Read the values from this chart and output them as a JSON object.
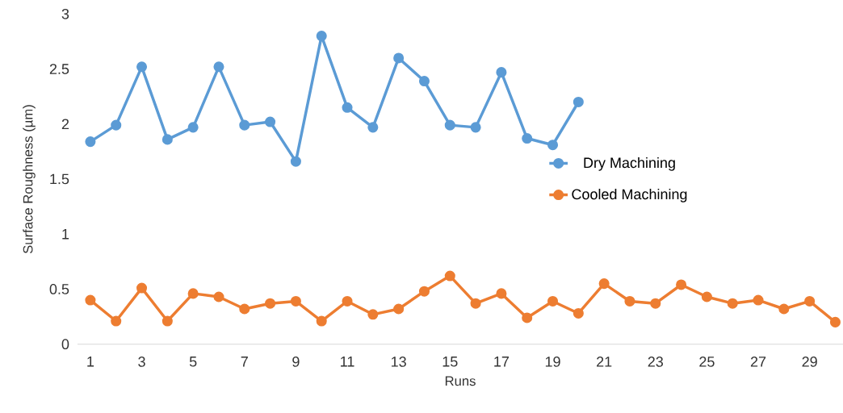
{
  "chart_data": {
    "type": "line",
    "xlabel": "Runs",
    "ylabel": "Surface Roughness (µm)",
    "categories": [
      "1",
      null,
      "3",
      null,
      "5",
      null,
      "7",
      null,
      "9",
      null,
      "11",
      null,
      "13",
      null,
      "15",
      null,
      "17",
      null,
      "19",
      null,
      "21",
      null,
      "23",
      null,
      "25",
      null,
      "27",
      null,
      "29",
      null
    ],
    "series": [
      {
        "name": "Dry Machining",
        "color": "#5b9bd5",
        "values": [
          1.84,
          1.99,
          2.52,
          1.86,
          1.97,
          2.52,
          1.99,
          2.02,
          1.66,
          2.8,
          2.15,
          1.97,
          2.6,
          2.39,
          1.99,
          1.97,
          2.47,
          1.87,
          1.81,
          2.2,
          null,
          null,
          null,
          null,
          null,
          null,
          null,
          null,
          null,
          null
        ]
      },
      {
        "name": "Cooled Machining",
        "color": "#ed7d31",
        "values": [
          0.4,
          0.21,
          0.51,
          0.21,
          0.46,
          0.43,
          0.32,
          0.37,
          0.39,
          0.21,
          0.39,
          0.27,
          0.32,
          0.48,
          0.62,
          0.37,
          0.46,
          0.24,
          0.39,
          0.28,
          0.55,
          0.39,
          0.37,
          0.54,
          0.43,
          0.37,
          0.4,
          0.32,
          0.39,
          0.2
        ]
      }
    ],
    "ylim": [
      0,
      3
    ],
    "yticks": [
      0,
      0.5,
      1,
      1.5,
      2,
      2.5,
      3
    ],
    "legend": "right",
    "marker": "circle",
    "line_style": "solid"
  }
}
